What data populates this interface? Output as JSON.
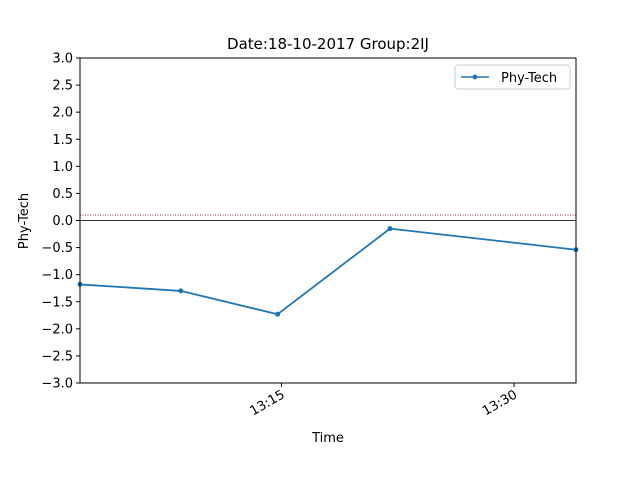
{
  "chart_data": {
    "type": "line",
    "title": "Date:18-10-2017 Group:2IJ",
    "xlabel": "Time",
    "ylabel": "Phy-Tech",
    "xlim": [
      "13:02",
      "13:34"
    ],
    "ylim": [
      -3.0,
      3.0
    ],
    "x_ticks": [
      "13:15",
      "13:30"
    ],
    "y_ticks": [
      "3.0",
      "2.5",
      "2.0",
      "1.5",
      "1.0",
      "0.5",
      "0.0",
      "−0.5",
      "−1.0",
      "−1.5",
      "−2.0",
      "−2.5",
      "−3.0"
    ],
    "grid": false,
    "legend_position": "top-right",
    "reference_lines": [
      {
        "y": 0.0,
        "style": "solid",
        "color": "#333333"
      },
      {
        "y": 0.1,
        "style": "dotted",
        "color": "#8b1a1a"
      }
    ],
    "series": [
      {
        "name": "Phy-Tech",
        "color": "#1f77b4",
        "marker": "circle",
        "x": [
          "13:02",
          "13:08:30",
          "13:14:45",
          "13:22",
          "13:34"
        ],
        "values": [
          -1.18,
          -1.3,
          -1.73,
          -0.15,
          -0.54
        ]
      }
    ]
  }
}
